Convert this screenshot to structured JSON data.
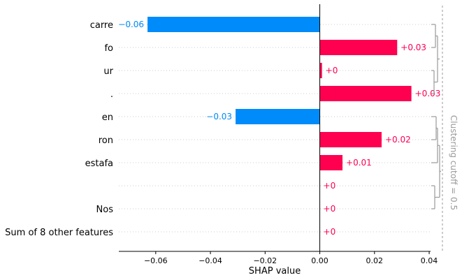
{
  "chart_data": {
    "type": "bar",
    "orientation": "horizontal",
    "features": [
      {
        "name": "carre",
        "value": -0.063,
        "label": "−0.06"
      },
      {
        "name": "fo",
        "value": 0.0283,
        "label": "+0.03"
      },
      {
        "name": "ur",
        "value": 0.0008,
        "label": "+0"
      },
      {
        "name": ".",
        "value": 0.0335,
        "label": "+0.03"
      },
      {
        "name": "en",
        "value": -0.0308,
        "label": "−0.03"
      },
      {
        "name": "ron",
        "value": 0.0226,
        "label": "+0.02"
      },
      {
        "name": "estafa",
        "value": 0.0083,
        "label": "+0.01"
      },
      {
        "name": "",
        "value": 0.0,
        "label": "+0"
      },
      {
        "name": "Nos",
        "value": 0.0,
        "label": "+0"
      },
      {
        "name": "Sum of 8 other features",
        "value": 0.0,
        "label": "+0"
      }
    ],
    "xlabel": "SHAP value",
    "xlim": [
      -0.0735,
      0.0405
    ],
    "xticks": [
      -0.06,
      -0.04,
      -0.02,
      0.0,
      0.02,
      0.04
    ],
    "xtick_labels": [
      "−0.06",
      "−0.04",
      "−0.02",
      "0.00",
      "0.02",
      "0.04"
    ],
    "clustering_label": "Clustering cutoff = 0.5",
    "colors": {
      "positive": "#ff0051",
      "negative": "#008bfb",
      "cluster": "#9a9a9a",
      "grid": "#cccccc"
    },
    "grid": "dotted row guides"
  }
}
